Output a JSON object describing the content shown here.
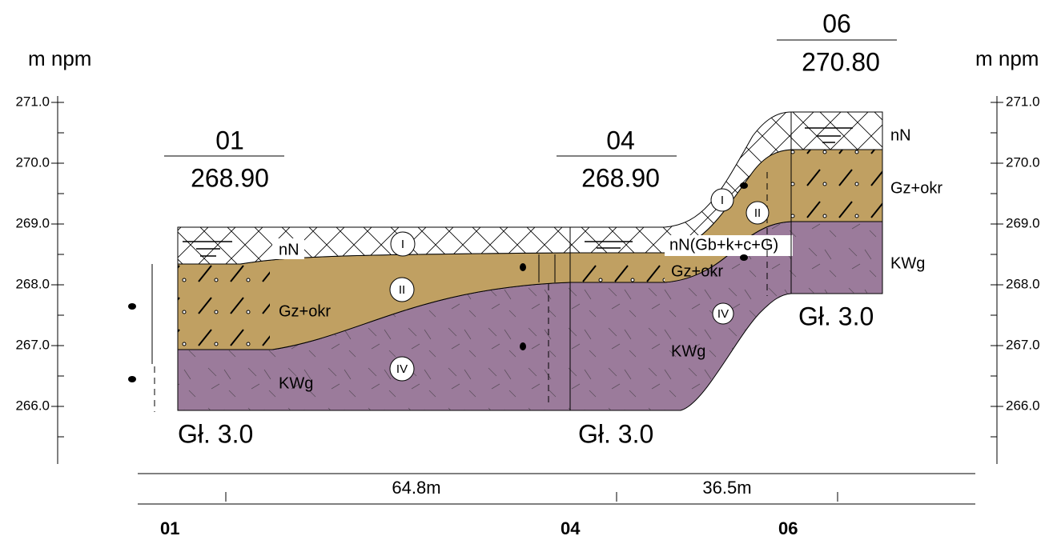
{
  "axis": {
    "unit": "m npm",
    "ticks": [
      "271.0",
      "270.0",
      "269.0",
      "268.0",
      "267.0",
      "266.0"
    ]
  },
  "boreholes": [
    {
      "id": "01",
      "elevation": "268.90",
      "depth": "Gł. 3.0",
      "layers": [
        "nN",
        "Gz+okr",
        "KWg"
      ]
    },
    {
      "id": "04",
      "elevation": "268.90",
      "depth": "Gł. 3.0",
      "layers": [
        "nN(Gb+k+c+G)",
        "Gz+okr",
        "KWg"
      ]
    },
    {
      "id": "06",
      "elevation": "270.80",
      "depth": "Gł. 3.0",
      "layers": [
        "nN",
        "Gz+okr",
        "KWg"
      ]
    }
  ],
  "layer_numbers": [
    "I",
    "II",
    "IV"
  ],
  "distances": [
    "64.8m",
    "36.5m"
  ],
  "stations": [
    "01",
    "04",
    "06"
  ]
}
